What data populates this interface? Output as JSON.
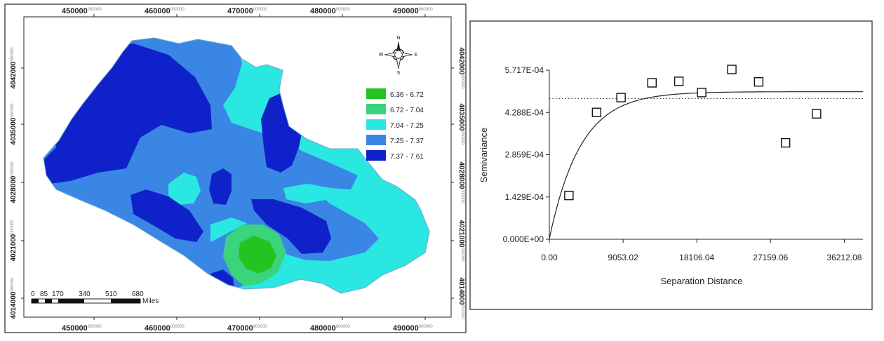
{
  "map": {
    "top_ticks": [
      {
        "major": "450000",
        "minor": "000000"
      },
      {
        "major": "460000",
        "minor": "000000"
      },
      {
        "major": "470000",
        "minor": "000000"
      },
      {
        "major": "480000",
        "minor": "000000"
      },
      {
        "major": "490000",
        "minor": "000000"
      }
    ],
    "bottom_ticks": [
      {
        "major": "450000",
        "minor": "000000"
      },
      {
        "major": "460000",
        "minor": "000000"
      },
      {
        "major": "470000",
        "minor": "000000"
      },
      {
        "major": "480000",
        "minor": "000000"
      },
      {
        "major": "490000",
        "minor": "000000"
      }
    ],
    "side_ticks": [
      {
        "major": "4042000",
        "minor": "000000"
      },
      {
        "major": "4035000",
        "minor": "000000"
      },
      {
        "major": "4028000",
        "minor": "000000"
      },
      {
        "major": "4021000",
        "minor": "000000"
      },
      {
        "major": "4014000",
        "minor": "000000"
      }
    ],
    "compass": {
      "n": "N",
      "s": "S",
      "e": "E",
      "w": "W"
    },
    "legend": [
      {
        "label": "6.36 - 6.72",
        "color": "#22c41f"
      },
      {
        "label": "6.72 - 7.04",
        "color": "#3ad47c"
      },
      {
        "label": "7.04 - 7.25",
        "color": "#2be7e2"
      },
      {
        "label": "7.25 - 7.37",
        "color": "#3a86e5"
      },
      {
        "label": "7.37 - 7.61",
        "color": "#0f22c9"
      }
    ],
    "scale_bar": {
      "labels": [
        "0",
        "85",
        "170",
        "340",
        "510",
        "680"
      ],
      "unit": "Miles"
    }
  },
  "chart_data": {
    "type": "scatter",
    "xlabel": "Separation Distance",
    "ylabel": "Semivariance",
    "x_ticks": [
      "0.00",
      "9053.02",
      "18106.04",
      "27159.06",
      "36212.08"
    ],
    "y_ticks": [
      "0.000E+00",
      "1.429E-04",
      "2.859E-04",
      "4.288E-04",
      "5.717E-04"
    ],
    "xlim": [
      0,
      38500
    ],
    "ylim": [
      0,
      0.0005717
    ],
    "grid": false,
    "points": [
      {
        "x": 2400,
        "y": 0.000148
      },
      {
        "x": 5800,
        "y": 0.0004288
      },
      {
        "x": 8800,
        "y": 0.000479
      },
      {
        "x": 12600,
        "y": 0.000529
      },
      {
        "x": 15900,
        "y": 0.000534
      },
      {
        "x": 18700,
        "y": 0.000496
      },
      {
        "x": 22400,
        "y": 0.000574
      },
      {
        "x": 25700,
        "y": 0.000532
      },
      {
        "x": 29000,
        "y": 0.000326
      },
      {
        "x": 32800,
        "y": 0.000424
      }
    ],
    "model": {
      "type": "exponential",
      "nugget": 2e-06,
      "sill": 0.000499,
      "range": 11500
    },
    "sill_line": 0.000476
  }
}
